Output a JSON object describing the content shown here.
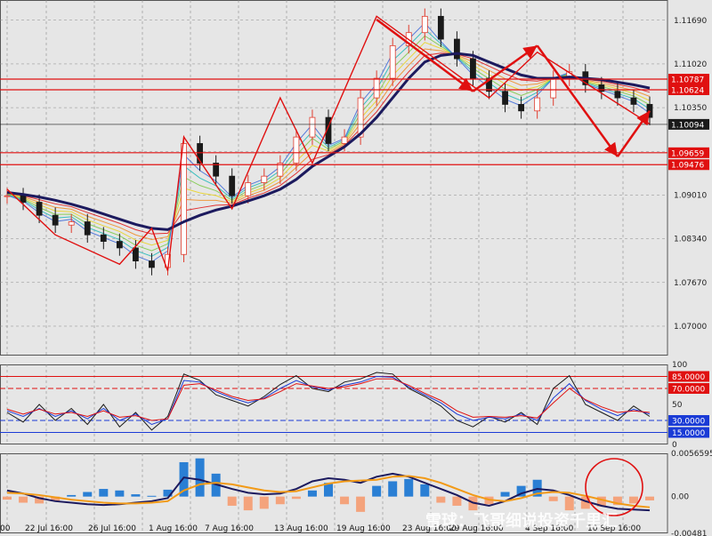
{
  "chart_data": [
    {
      "type": "line",
      "panel": "price",
      "y_ticks": [
        "1.11690",
        "1.11020",
        "1.10350",
        "1.09680",
        "1.09010",
        "1.08340",
        "1.07670",
        "1.07000"
      ],
      "y_tick_values": [
        1.1169,
        1.1102,
        1.1035,
        1.0968,
        1.0901,
        1.0834,
        1.0767,
        1.07
      ],
      "y_tick_labels_shown": [
        "1.11690",
        "1.11020",
        "1.10350",
        "1.09680",
        "1.09010",
        "1.08340",
        "1.07670",
        "1.07000"
      ],
      "ylim": [
        1.0655,
        1.12
      ],
      "horizontal_levels": [
        {
          "label": "1.10787",
          "value": 1.10787,
          "color": "#e01010"
        },
        {
          "label": "1.10624",
          "value": 1.10624,
          "color": "#e01010"
        },
        {
          "label": "1.10094",
          "value": 1.10094,
          "color": "#1a1a1a"
        },
        {
          "label": "1.09659",
          "value": 1.09659,
          "color": "#e01010"
        },
        {
          "label": "1.09476",
          "value": 1.09476,
          "color": "#e01010"
        }
      ],
      "x": [
        0,
        1,
        2,
        3,
        4,
        5,
        6,
        7,
        8,
        9,
        10,
        11,
        12,
        13,
        14,
        15,
        16,
        17,
        18,
        19,
        20,
        21,
        22,
        23,
        24,
        25,
        26,
        27,
        28,
        29,
        30,
        31,
        32,
        33,
        34,
        35,
        36,
        37,
        38,
        39,
        40
      ],
      "series": [
        {
          "role": "close",
          "color": "#1a1a1a",
          "values": [
            1.09,
            1.089,
            1.087,
            1.0855,
            1.086,
            1.084,
            1.083,
            1.082,
            1.08,
            1.079,
            1.081,
            1.098,
            1.095,
            1.093,
            1.09,
            1.092,
            1.093,
            1.095,
            1.099,
            1.102,
            1.098,
            1.099,
            1.105,
            1.108,
            1.113,
            1.115,
            1.1175,
            1.114,
            1.111,
            1.108,
            1.106,
            1.104,
            1.103,
            1.105,
            1.108,
            1.109,
            1.107,
            1.106,
            1.105,
            1.104,
            1.102
          ]
        },
        {
          "role": "moving-average",
          "color": "#1c1a5e",
          "values": [
            1.0905,
            1.0902,
            1.0898,
            1.0893,
            1.0887,
            1.088,
            1.0872,
            1.0864,
            1.0856,
            1.085,
            1.0848,
            1.086,
            1.087,
            1.0878,
            1.0884,
            1.0892,
            1.09,
            1.091,
            1.0925,
            1.0945,
            1.096,
            1.0975,
            1.0995,
            1.102,
            1.105,
            1.108,
            1.1105,
            1.1115,
            1.1118,
            1.1115,
            1.1105,
            1.1095,
            1.1085,
            1.108,
            1.108,
            1.1082,
            1.108,
            1.1078,
            1.1074,
            1.107,
            1.1065
          ]
        },
        {
          "role": "zigzag",
          "color": "#e01010",
          "values": [
            1.091,
            null,
            null,
            1.084,
            null,
            null,
            null,
            1.0795,
            null,
            1.085,
            1.0785,
            1.099,
            null,
            null,
            1.088,
            null,
            null,
            1.105,
            null,
            1.095,
            null,
            null,
            null,
            1.1175,
            null,
            null,
            null,
            null,
            null,
            null,
            1.105,
            null,
            null,
            1.112,
            null,
            null,
            null,
            null,
            null,
            null,
            1.101
          ]
        }
      ],
      "arrows": [
        {
          "from": [
            23,
            1.117
          ],
          "to": [
            29,
            1.106
          ],
          "color": "#e01010"
        },
        {
          "from": [
            29,
            1.106
          ],
          "to": [
            33,
            1.113
          ],
          "color": "#e01010"
        },
        {
          "from": [
            33,
            1.113
          ],
          "to": [
            38,
            1.096
          ],
          "color": "#e01010"
        },
        {
          "from": [
            38,
            1.096
          ],
          "to": [
            40,
            1.103
          ],
          "color": "#e01010"
        }
      ]
    },
    {
      "type": "line",
      "panel": "stochastic",
      "ylim": [
        0,
        100
      ],
      "y_tick_labels_shown": [
        "100",
        "85.0000",
        "70.0000",
        "50",
        "30.0000",
        "15.0000",
        "0"
      ],
      "levels": [
        {
          "label": "85.0000",
          "value": 85,
          "color": "#e01010"
        },
        {
          "label": "70.0000",
          "value": 70,
          "color": "#e01010"
        },
        {
          "label": "30.0000",
          "value": 30,
          "color": "#1a3bd6"
        },
        {
          "label": "15.0000",
          "value": 15,
          "color": "#1a3bd6"
        }
      ],
      "x": [
        0,
        1,
        2,
        3,
        4,
        5,
        6,
        7,
        8,
        9,
        10,
        11,
        12,
        13,
        14,
        15,
        16,
        17,
        18,
        19,
        20,
        21,
        22,
        23,
        24,
        25,
        26,
        27,
        28,
        29,
        30,
        31,
        32,
        33,
        34,
        35,
        36,
        37,
        38,
        39,
        40
      ],
      "series": [
        {
          "role": "main",
          "color": "#1a1a1a",
          "values": [
            40,
            28,
            50,
            30,
            45,
            25,
            50,
            22,
            40,
            18,
            35,
            88,
            80,
            62,
            55,
            48,
            60,
            75,
            86,
            70,
            66,
            78,
            82,
            90,
            88,
            70,
            60,
            48,
            30,
            22,
            35,
            28,
            40,
            25,
            70,
            86,
            50,
            40,
            30,
            48,
            35
          ]
        },
        {
          "role": "signal",
          "color": "#1a3bd6",
          "values": [
            42,
            35,
            45,
            35,
            42,
            32,
            45,
            30,
            38,
            25,
            32,
            80,
            78,
            66,
            58,
            52,
            58,
            70,
            80,
            72,
            68,
            74,
            78,
            85,
            84,
            72,
            62,
            52,
            38,
            30,
            34,
            32,
            38,
            30,
            58,
            76,
            55,
            44,
            36,
            44,
            38
          ]
        },
        {
          "role": "slow",
          "color": "#e01010",
          "values": [
            44,
            38,
            44,
            38,
            40,
            35,
            42,
            34,
            36,
            30,
            32,
            74,
            76,
            68,
            60,
            55,
            57,
            66,
            76,
            73,
            70,
            72,
            76,
            82,
            82,
            74,
            64,
            55,
            42,
            34,
            35,
            34,
            36,
            33,
            52,
            70,
            56,
            47,
            40,
            42,
            40
          ]
        }
      ]
    },
    {
      "type": "bar",
      "panel": "macd",
      "ylim": [
        -0.00481,
        0.0056595
      ],
      "y_tick_labels_shown": [
        "0.0056595",
        "0.00",
        "-0.00481"
      ],
      "x": [
        0,
        1,
        2,
        3,
        4,
        5,
        6,
        7,
        8,
        9,
        10,
        11,
        12,
        13,
        14,
        15,
        16,
        17,
        18,
        19,
        20,
        21,
        22,
        23,
        24,
        25,
        26,
        27,
        28,
        29,
        30,
        31,
        32,
        33,
        34,
        35,
        36,
        37,
        38,
        39,
        40
      ],
      "histogram": [
        -0.0004,
        -0.0008,
        -0.0009,
        -0.0006,
        0.0002,
        0.0006,
        0.001,
        0.0008,
        0.0003,
        0.0001,
        0.0009,
        0.0045,
        0.005,
        0.003,
        -0.0012,
        -0.0018,
        -0.0016,
        -0.001,
        -0.0003,
        0.0008,
        0.0018,
        -0.001,
        -0.002,
        0.0014,
        0.002,
        0.0023,
        0.0016,
        -0.0008,
        -0.0012,
        -0.0018,
        -0.001,
        0.0006,
        0.0014,
        0.0022,
        -0.0006,
        -0.0018,
        -0.0016,
        -0.0013,
        -0.0011,
        -0.0009,
        -0.0005
      ],
      "series": [
        {
          "role": "macd",
          "color": "#1c1a5e",
          "values": [
            0.0008,
            0.0004,
            -0.0002,
            -0.0006,
            -0.0008,
            -0.001,
            -0.0011,
            -0.001,
            -0.0008,
            -0.0006,
            -0.0002,
            0.0025,
            0.0022,
            0.0016,
            0.001,
            0.0005,
            0.0003,
            0.0004,
            0.001,
            0.002,
            0.0024,
            0.0022,
            0.0018,
            0.0026,
            0.003,
            0.0026,
            0.0018,
            0.001,
            0.0002,
            -0.0008,
            -0.0012,
            -0.0006,
            0.0004,
            0.001,
            0.0008,
            0.0002,
            -0.0006,
            -0.0012,
            -0.0016,
            -0.0017,
            -0.0018
          ]
        },
        {
          "role": "signal",
          "color": "#f29a16",
          "values": [
            0.0005,
            0.0004,
            0.0002,
            -0.0001,
            -0.0004,
            -0.0006,
            -0.0008,
            -0.0009,
            -0.0009,
            -0.0008,
            -0.0006,
            0.0008,
            0.0016,
            0.0018,
            0.0016,
            0.0012,
            0.0008,
            0.0006,
            0.0007,
            0.0012,
            0.0017,
            0.002,
            0.0021,
            0.0022,
            0.0026,
            0.0027,
            0.0024,
            0.0018,
            0.001,
            0.0002,
            -0.0004,
            -0.0006,
            -0.0002,
            0.0004,
            0.0006,
            0.0005,
            0.0001,
            -0.0004,
            -0.0009,
            -0.0012,
            -0.0014
          ]
        }
      ]
    }
  ],
  "x_labels": [
    "00",
    "22 Jul 16:00",
    "26 Jul 16:00",
    "1 Aug 16:00",
    "7 Aug 16:00",
    "13 Aug 16:00",
    "19 Aug 16:00",
    "23 Aug 16:00",
    "29 Aug 16:00",
    "4 Sep 16:00",
    "10 Sep 16:00"
  ],
  "watermark": "雪球：飞哥细说投资千里汇",
  "colors": {
    "background": "#e6e6e6",
    "grid": "#8a8a8a",
    "resistance": "#e01010",
    "bull_candle": "#e03c2e",
    "bear_candle": "#1a1a1a",
    "ma_ribbon": [
      "#e01010",
      "#f08a1e",
      "#e8d21c",
      "#7ac943",
      "#1cb8b8",
      "#3a66d8"
    ],
    "badge_current": "#1a1a1a",
    "badge_red": "#e01010",
    "badge_blue": "#1a3bd6",
    "circle": "#e01010"
  }
}
